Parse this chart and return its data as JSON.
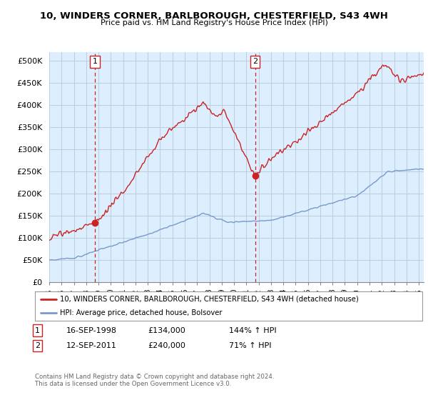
{
  "title": "10, WINDERS CORNER, BARLBOROUGH, CHESTERFIELD, S43 4WH",
  "subtitle": "Price paid vs. HM Land Registry's House Price Index (HPI)",
  "ylabel_ticks": [
    "£0",
    "£50K",
    "£100K",
    "£150K",
    "£200K",
    "£250K",
    "£300K",
    "£350K",
    "£400K",
    "£450K",
    "£500K"
  ],
  "ytick_values": [
    0,
    50000,
    100000,
    150000,
    200000,
    250000,
    300000,
    350000,
    400000,
    450000,
    500000
  ],
  "ylim": [
    0,
    520000
  ],
  "xlim_start": 1995.3,
  "xlim_end": 2025.4,
  "sale1_date": 1998.71,
  "sale1_price": 134000,
  "sale1_label": "1",
  "sale2_date": 2011.71,
  "sale2_price": 240000,
  "sale2_label": "2",
  "red_color": "#cc2222",
  "blue_color": "#7799cc",
  "vline_color": "#cc2222",
  "background_color": "#ffffff",
  "plot_bg_color": "#ddeeff",
  "grid_color": "#bbccdd",
  "legend_entry1": "10, WINDERS CORNER, BARLBOROUGH, CHESTERFIELD, S43 4WH (detached house)",
  "legend_entry2": "HPI: Average price, detached house, Bolsover",
  "annotation1_date": "16-SEP-1998",
  "annotation1_price": "£134,000",
  "annotation1_hpi": "144% ↑ HPI",
  "annotation2_date": "12-SEP-2011",
  "annotation2_price": "£240,000",
  "annotation2_hpi": "71% ↑ HPI",
  "footer": "Contains HM Land Registry data © Crown copyright and database right 2024.\nThis data is licensed under the Open Government Licence v3.0."
}
